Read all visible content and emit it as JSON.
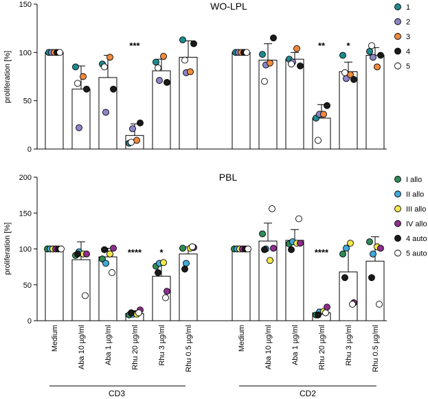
{
  "colors": {
    "donor1": "#1f8a8e",
    "donor2": "#8a86c8",
    "donor3": "#f08a3c",
    "donor4": "#1a1a1a",
    "donor5": "#ffffff",
    "I_allo": "#2e8b57",
    "II_allo": "#3fa9dc",
    "III_allo": "#f2e84a",
    "IV_allo": "#8e2f8e",
    "4_auto": "#1a1a1a",
    "5_auto": "#ffffff"
  },
  "group_labels": [
    "CD3",
    "CD2"
  ],
  "chart_data": [
    {
      "type": "bar",
      "title": "WO-LPL",
      "ylabel": "proliferation [%]",
      "ylim": [
        0,
        150
      ],
      "yticks": [
        "0",
        "50",
        "100",
        "150"
      ],
      "categories": [
        "Medium",
        "Aba 10 µg/ml",
        "Aba 1 µg/ml",
        "Rhu 20 µg/ml",
        "Rhu 3 µg/ml",
        "Rhu 0.5 µg/ml",
        "Medium",
        "Aba 10 µg/ml",
        "Aba 1 µg/ml",
        "Rhu 20 µg/ml",
        "Rhu 3 µg/ml",
        "Rhu 0.5 µg/ml"
      ],
      "groups": [
        "CD3",
        "CD3",
        "CD3",
        "CD3",
        "CD3",
        "CD3",
        "CD2",
        "CD2",
        "CD2",
        "CD2",
        "CD2",
        "CD2"
      ],
      "means": [
        100,
        62,
        74,
        14,
        81,
        95,
        100,
        92,
        93,
        32,
        80,
        97
      ],
      "sd": [
        0,
        24,
        23,
        12,
        12,
        17,
        0,
        17,
        7,
        14,
        10,
        8
      ],
      "significance": [
        "",
        "",
        "",
        "***",
        "",
        "",
        "",
        "",
        "",
        "**",
        "*",
        ""
      ],
      "legend": [
        "1",
        "2",
        "3",
        "4",
        "5"
      ],
      "legend_colors": [
        "#1f8a8e",
        "#8a86c8",
        "#f08a3c",
        "#1a1a1a",
        "#ffffff"
      ],
      "points": [
        [
          100,
          100,
          100,
          100,
          100
        ],
        [
          85,
          22,
          75,
          62,
          68
        ],
        [
          88,
          38,
          95,
          62,
          85
        ],
        [
          6,
          21,
          9,
          27,
          7
        ],
        [
          90,
          71,
          96,
          69,
          84
        ],
        [
          113,
          79,
          80,
          109,
          92
        ],
        [
          100,
          100,
          100,
          100,
          100
        ],
        [
          98,
          87,
          89,
          115,
          70
        ],
        [
          93,
          90,
          104,
          86,
          88
        ],
        [
          32,
          36,
          36,
          45,
          9
        ],
        [
          97,
          73,
          77,
          72,
          79
        ],
        [
          101,
          95,
          85,
          97,
          107
        ]
      ]
    },
    {
      "type": "bar",
      "title": "PBL",
      "ylabel": "proliferation [%]",
      "ylim": [
        0,
        200
      ],
      "yticks": [
        "0",
        "50",
        "100",
        "150",
        "200"
      ],
      "categories": [
        "Medium",
        "Aba 10 µg/ml",
        "Aba 1 µg/ml",
        "Rhu 20 µg/ml",
        "Rhu 3 µg/ml",
        "Rhu 0.5 µg/ml",
        "Medium",
        "Aba 10 µg/ml",
        "Aba 1 µg/ml",
        "Rhu 20 µg/ml",
        "Rhu 3 µg/ml",
        "Rhu 0.5 µg/ml"
      ],
      "groups": [
        "CD3",
        "CD3",
        "CD3",
        "CD3",
        "CD3",
        "CD3",
        "CD2",
        "CD2",
        "CD2",
        "CD2",
        "CD2",
        "CD2"
      ],
      "means": [
        100,
        85,
        89,
        10,
        62,
        93,
        100,
        111,
        112,
        11,
        68,
        83
      ],
      "sd": [
        0,
        25,
        12,
        4,
        21,
        10,
        0,
        25,
        15,
        5,
        37,
        34
      ],
      "significance": [
        "",
        "",
        "",
        "****",
        "*",
        "",
        "",
        "",
        "",
        "****",
        "",
        ""
      ],
      "legend": [
        "I allo",
        "II allo",
        "III allo",
        "IV allo",
        "4 auto",
        "5 auto"
      ],
      "legend_colors": [
        "#2e8b57",
        "#3fa9dc",
        "#f2e84a",
        "#8e2f8e",
        "#1a1a1a",
        "#ffffff"
      ],
      "points": [
        [
          100,
          100,
          100,
          100,
          100,
          100
        ],
        [
          91,
          96,
          93,
          93,
          93,
          35
        ],
        [
          86,
          80,
          93,
          101,
          99,
          67
        ],
        [
          8,
          9,
          9,
          15,
          11,
          11
        ],
        [
          76,
          80,
          81,
          41,
          67,
          32
        ],
        [
          101,
          80,
          101,
          102,
          72,
          103
        ],
        [
          100,
          100,
          100,
          100,
          100,
          100
        ],
        [
          121,
          100,
          84,
          101,
          99,
          156
        ],
        [
          107,
          110,
          108,
          108,
          99,
          142
        ],
        [
          8,
          12,
          13,
          19,
          8,
          11
        ],
        [
          93,
          101,
          108,
          25,
          60,
          23
        ],
        [
          110,
          93,
          103,
          101,
          60,
          23
        ]
      ]
    }
  ]
}
